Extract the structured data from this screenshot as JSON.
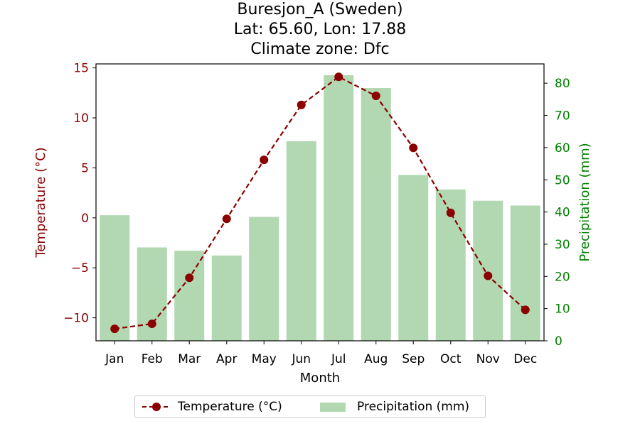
{
  "title_lines": [
    "Buresjon_A (Sweden)",
    "Lat: 65.60, Lon: 17.88",
    "Climate zone: Dfc"
  ],
  "colors": {
    "temperature": "#8b0000",
    "precipitation": "#008000",
    "precip_bar": "#b2d8b2"
  },
  "chart_data": {
    "type": "bar+line",
    "title": "Buresjon_A (Sweden)\nLat: 65.60, Lon: 17.88\nClimate zone: Dfc",
    "categories": [
      "Jan",
      "Feb",
      "Mar",
      "Apr",
      "May",
      "Jun",
      "Jul",
      "Aug",
      "Sep",
      "Oct",
      "Nov",
      "Dec"
    ],
    "xlabel": "Month",
    "ylabel_left": "Temperature (°C)",
    "ylabel_right": "Precipitation (mm)",
    "ylim_left": [
      -12.3,
      15.4
    ],
    "ylim_right": [
      0,
      86
    ],
    "yticks_left": [
      -10,
      -5,
      0,
      5,
      10,
      15
    ],
    "yticks_left_labels": [
      "−10",
      "−5",
      "0",
      "5",
      "10",
      "15"
    ],
    "yticks_right": [
      0,
      10,
      20,
      30,
      40,
      50,
      60,
      70,
      80
    ],
    "series": [
      {
        "name": "Temperature (°C)",
        "type": "line",
        "axis": "left",
        "values": [
          -11.1,
          -10.6,
          -6.0,
          -0.1,
          5.8,
          11.3,
          14.1,
          12.2,
          7.0,
          0.5,
          -5.8,
          -9.2
        ]
      },
      {
        "name": "Precipitation (mm)",
        "type": "bar",
        "axis": "right",
        "values": [
          39,
          29,
          28,
          26.5,
          38.5,
          62,
          82.5,
          78.5,
          51.5,
          47,
          43.5,
          42
        ]
      }
    ],
    "legend": {
      "position": "bottom-center",
      "entries": [
        "Temperature (°C)",
        "Precipitation (mm)"
      ]
    },
    "grid": false
  }
}
